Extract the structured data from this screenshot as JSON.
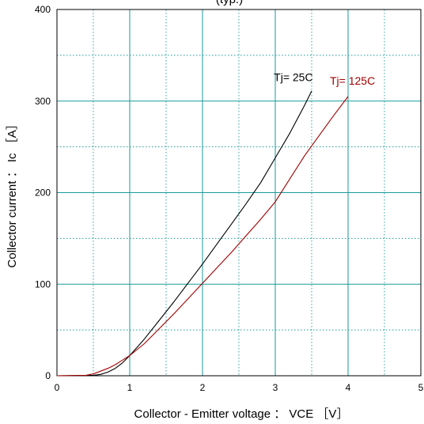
{
  "chart_data": {
    "type": "line",
    "title": "(typ.)",
    "xlabel": "Collector - Emitter voltage ： VCE ［V］",
    "ylabel": "Collector current ： Ic ［A］",
    "xlim": [
      0,
      5
    ],
    "ylim": [
      0,
      400
    ],
    "x_ticks": [
      "0",
      "1",
      "2",
      "3",
      "4",
      "5"
    ],
    "y_ticks": [
      "0",
      "100",
      "200",
      "300",
      "400"
    ],
    "grid": "on",
    "series": [
      {
        "name": "Tj= 25C",
        "color": "#000000",
        "points": [
          [
            0,
            0
          ],
          [
            0.5,
            0.5
          ],
          [
            0.6,
            1.5
          ],
          [
            0.7,
            4
          ],
          [
            0.8,
            8
          ],
          [
            0.9,
            14
          ],
          [
            1.0,
            22
          ],
          [
            1.2,
            40
          ],
          [
            1.4,
            60
          ],
          [
            1.6,
            80
          ],
          [
            1.8,
            101
          ],
          [
            2.0,
            122
          ],
          [
            2.2,
            144
          ],
          [
            2.4,
            166
          ],
          [
            2.6,
            188
          ],
          [
            2.8,
            211
          ],
          [
            3.0,
            238
          ],
          [
            3.2,
            265
          ],
          [
            3.4,
            295
          ],
          [
            3.5,
            311
          ]
        ]
      },
      {
        "name": "Tj= 125C",
        "color": "#a00000",
        "points": [
          [
            0,
            0
          ],
          [
            0.4,
            0.5
          ],
          [
            0.5,
            2
          ],
          [
            0.6,
            5
          ],
          [
            0.7,
            8
          ],
          [
            0.8,
            12
          ],
          [
            0.9,
            17
          ],
          [
            1.0,
            22
          ],
          [
            1.2,
            35
          ],
          [
            1.4,
            51
          ],
          [
            1.6,
            67
          ],
          [
            1.8,
            84
          ],
          [
            2.0,
            101
          ],
          [
            2.2,
            118
          ],
          [
            2.4,
            135
          ],
          [
            2.6,
            153
          ],
          [
            2.8,
            171
          ],
          [
            3.0,
            190
          ],
          [
            3.2,
            215
          ],
          [
            3.4,
            240
          ],
          [
            3.6,
            262
          ],
          [
            3.8,
            284
          ],
          [
            4.0,
            305
          ]
        ]
      }
    ]
  }
}
